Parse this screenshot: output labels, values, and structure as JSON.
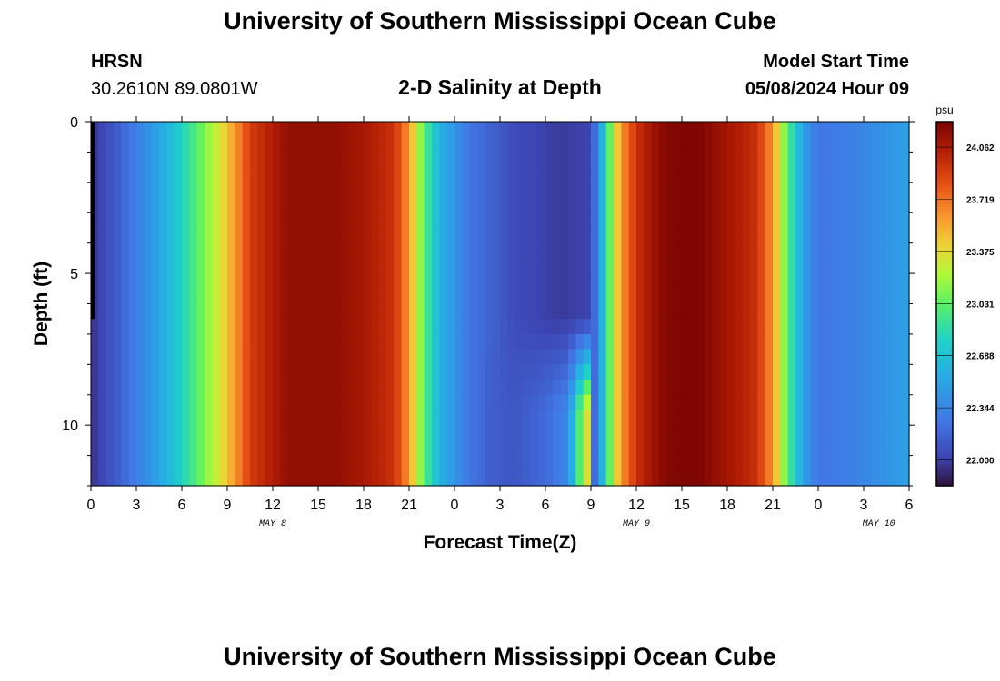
{
  "header": {
    "title": "University of Southern Mississippi Ocean Cube",
    "station": "HRSN",
    "coords": "30.2610N  89.0801W",
    "subtitle": "2-D Salinity at Depth",
    "start_label": "Model Start Time",
    "start_value": "05/08/2024 Hour 09"
  },
  "footer": {
    "title": "University of Southern Mississippi Ocean Cube"
  },
  "chart_data": {
    "type": "heatmap",
    "title": "2-D Salinity at Depth",
    "xlabel": "Forecast Time(Z)",
    "ylabel": "Depth (ft)",
    "x_ticks": [
      "0",
      "3",
      "6",
      "9",
      "12",
      "15",
      "18",
      "21",
      "0",
      "3",
      "6",
      "9",
      "12",
      "15",
      "18",
      "21",
      "0",
      "3",
      "6"
    ],
    "day_labels": [
      {
        "label": "MAY 8",
        "hour": 12
      },
      {
        "label": "MAY 9",
        "hour": 36
      },
      {
        "label": "MAY 10",
        "hour": 52
      }
    ],
    "x_hours": [
      0,
      54
    ],
    "y_ticks": [
      0,
      5,
      10
    ],
    "ylim": [
      0,
      12
    ],
    "colorbar": {
      "unit": "psu",
      "min": 21.83,
      "max": 24.23,
      "ticks": [
        "24.062",
        "23.719",
        "23.375",
        "23.031",
        "22.688",
        "22.344",
        "22.000"
      ]
    },
    "surface_salinity_by_hour": [
      {
        "hour": 0,
        "value": 21.95
      },
      {
        "hour": 1,
        "value": 22.05
      },
      {
        "hour": 3,
        "value": 22.3
      },
      {
        "hour": 5,
        "value": 22.6
      },
      {
        "hour": 7,
        "value": 23.0
      },
      {
        "hour": 9,
        "value": 23.45
      },
      {
        "hour": 10.5,
        "value": 23.9
      },
      {
        "hour": 12,
        "value": 24.05
      },
      {
        "hour": 13,
        "value": 24.15
      },
      {
        "hour": 16,
        "value": 24.15
      },
      {
        "hour": 18,
        "value": 24.08
      },
      {
        "hour": 20,
        "value": 23.95
      },
      {
        "hour": 21,
        "value": 23.6
      },
      {
        "hour": 22,
        "value": 23.0
      },
      {
        "hour": 23,
        "value": 22.6
      },
      {
        "hour": 25,
        "value": 22.25
      },
      {
        "hour": 28,
        "value": 22.05
      },
      {
        "hour": 31,
        "value": 21.98
      },
      {
        "hour": 33,
        "value": 22.02
      },
      {
        "hour": 33.5,
        "value": 22.4
      },
      {
        "hour": 34,
        "value": 22.8
      },
      {
        "hour": 34.5,
        "value": 23.3
      },
      {
        "hour": 35,
        "value": 23.6
      },
      {
        "hour": 36,
        "value": 23.95
      },
      {
        "hour": 37,
        "value": 24.1
      },
      {
        "hour": 38,
        "value": 24.2
      },
      {
        "hour": 40,
        "value": 24.22
      },
      {
        "hour": 42,
        "value": 24.1
      },
      {
        "hour": 44,
        "value": 23.95
      },
      {
        "hour": 45,
        "value": 23.6
      },
      {
        "hour": 46,
        "value": 23.0
      },
      {
        "hour": 47,
        "value": 22.5
      },
      {
        "hour": 48,
        "value": 22.25
      },
      {
        "hour": 50,
        "value": 22.3
      },
      {
        "hour": 52,
        "value": 22.4
      },
      {
        "hour": 54,
        "value": 22.5
      }
    ],
    "deep_salinity_by_hour": [
      {
        "hour": 26,
        "value": 22.15
      },
      {
        "hour": 28,
        "value": 22.1
      },
      {
        "hour": 30,
        "value": 22.2
      },
      {
        "hour": 31.5,
        "value": 22.35
      },
      {
        "hour": 32,
        "value": 22.8
      },
      {
        "hour": 32.5,
        "value": 23.2
      },
      {
        "hour": 33,
        "value": 23.5
      }
    ],
    "grid": false
  }
}
